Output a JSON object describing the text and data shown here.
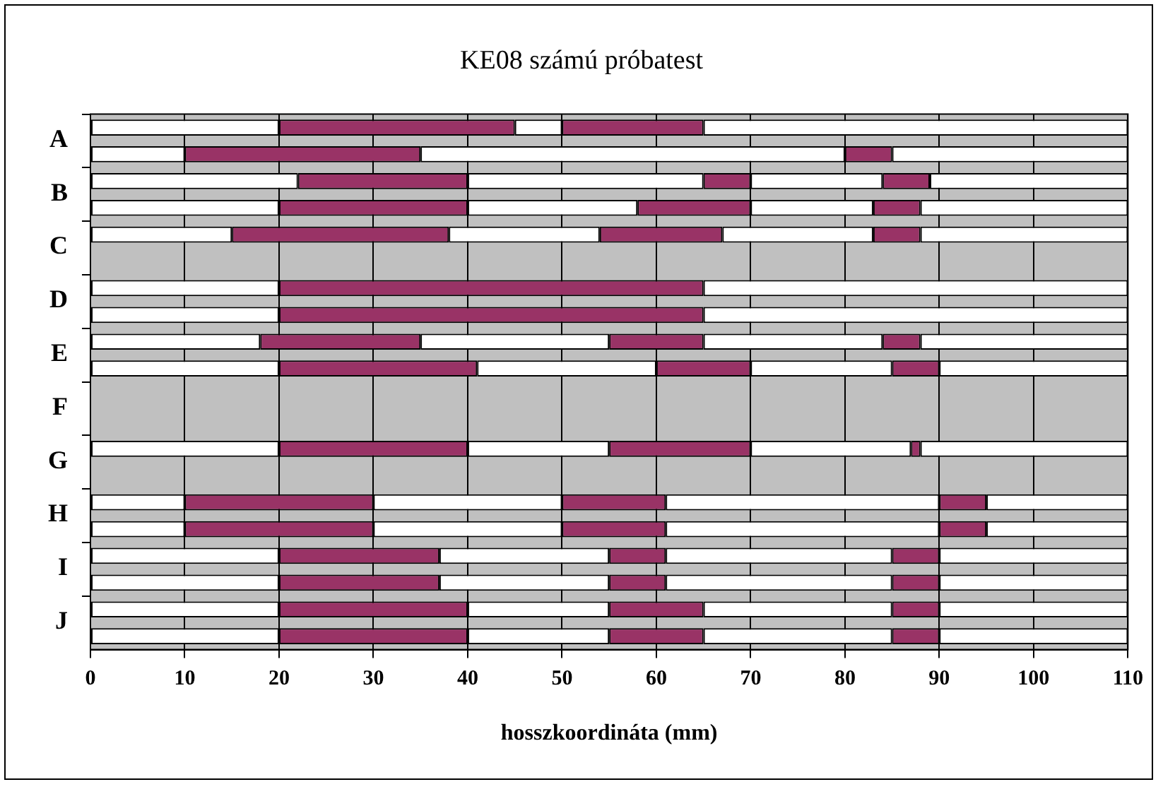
{
  "chart_data": {
    "type": "bar",
    "orientation": "horizontal",
    "stacked": true,
    "title": "KE08 számú próbatest",
    "xlabel": "hosszkoordináta (mm)",
    "categories": [
      "A",
      null,
      "B",
      null,
      "C",
      null,
      "D",
      null,
      "E",
      null,
      "F",
      null,
      "G",
      null,
      "H",
      null,
      "I",
      null,
      "J",
      null
    ],
    "series": [
      {
        "color": "#ffffff",
        "values": [
          20,
          10,
          22,
          20,
          15,
          null,
          20,
          20,
          18,
          20,
          null,
          null,
          20,
          null,
          10,
          10,
          20,
          20,
          20,
          20
        ]
      },
      {
        "color": "#993366",
        "values": [
          25,
          25,
          18,
          20,
          23,
          null,
          45,
          45,
          17,
          21,
          null,
          null,
          20,
          null,
          20,
          20,
          17,
          17,
          20,
          20
        ]
      },
      {
        "color": "#ffffff",
        "values": [
          5,
          45,
          25,
          18,
          16,
          null,
          45,
          45,
          20,
          19,
          null,
          null,
          15,
          null,
          20,
          20,
          18,
          18,
          15,
          15
        ]
      },
      {
        "color": "#993366",
        "values": [
          15,
          5,
          5,
          12,
          13,
          null,
          null,
          null,
          10,
          10,
          null,
          null,
          15,
          null,
          11,
          11,
          6,
          6,
          10,
          10
        ]
      },
      {
        "color": "#ffffff",
        "values": [
          45,
          25,
          14,
          13,
          16,
          null,
          null,
          null,
          19,
          15,
          null,
          null,
          17,
          null,
          29,
          29,
          24,
          24,
          20,
          20
        ]
      },
      {
        "color": "#993366",
        "values": [
          null,
          null,
          5,
          5,
          5,
          null,
          null,
          null,
          4,
          5,
          null,
          null,
          1,
          null,
          5,
          5,
          5,
          5,
          5,
          5
        ]
      },
      {
        "color": "#ffffff",
        "values": [
          null,
          null,
          21,
          22,
          22,
          null,
          null,
          null,
          22,
          20,
          null,
          null,
          22,
          null,
          15,
          15,
          20,
          20,
          20,
          20
        ]
      }
    ],
    "xlim": [
      0,
      110
    ],
    "xticks": [
      0,
      10,
      20,
      30,
      40,
      50,
      60,
      70,
      80,
      90,
      100,
      110
    ],
    "grid": "x",
    "legend": false
  }
}
